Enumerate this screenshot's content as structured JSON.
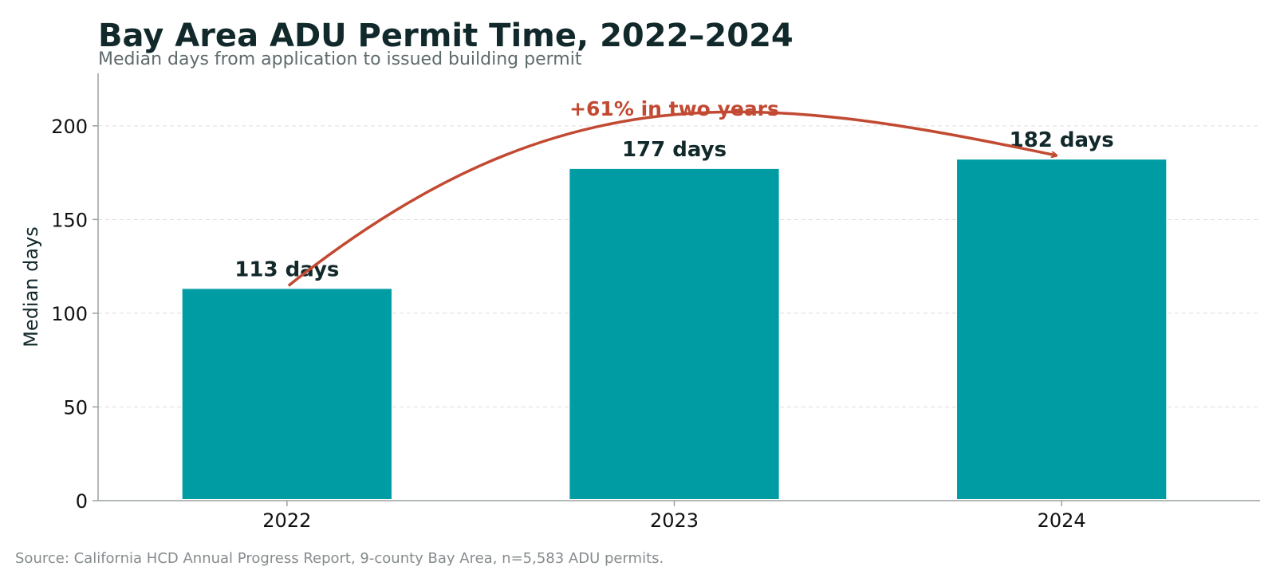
{
  "colors": {
    "bar": "#009ca4",
    "annotation": "#c24a32",
    "text": "#12292b",
    "grid": "#dddddd",
    "axis": "#9aa0a2"
  },
  "chart_data": {
    "type": "bar",
    "title": "Bay Area ADU Permit Time, 2022–2024",
    "subtitle": "Median days from application to issued building permit",
    "xlabel": "",
    "ylabel": "Median days",
    "categories": [
      "2022",
      "2023",
      "2024"
    ],
    "values": [
      113,
      177,
      182
    ],
    "data_labels": [
      "113 days",
      "177 days",
      "182 days"
    ],
    "ylim": [
      0,
      228
    ],
    "yticks": [
      0,
      50,
      100,
      150,
      200
    ],
    "grid": "horizontal dashed",
    "annotation": {
      "text": "+61% in two years",
      "arrow_from": "2022",
      "arrow_to": "2024"
    },
    "source": "Source: California HCD Annual Progress Report, 9-county Bay Area, n=5,583 ADU permits."
  }
}
